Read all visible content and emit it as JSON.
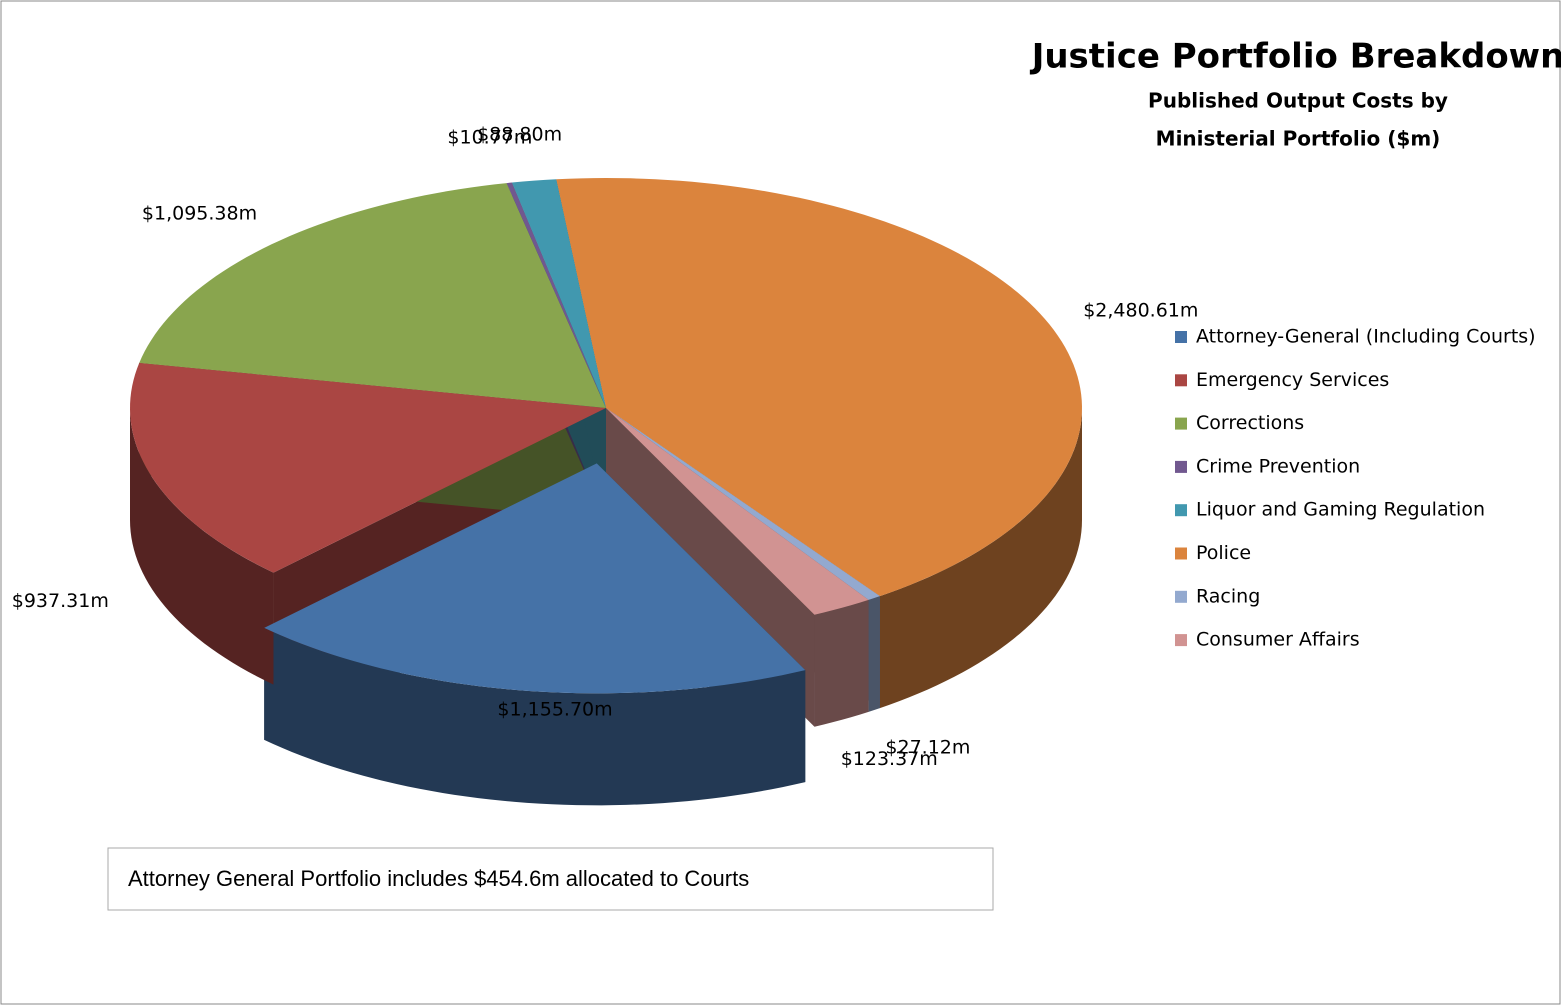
{
  "chart_data": {
    "type": "pie3d",
    "title": "Justice Portfolio Breakdown",
    "subtitle": [
      "Published Output Costs by",
      "Ministerial Portfolio ($m)"
    ],
    "categories": [
      "Attorney-General (Including Courts)",
      "Emergency Services",
      "Corrections",
      "Crime Prevention",
      "Liquor and Gaming Regulation",
      "Police",
      "Racing",
      "Consumer Affairs"
    ],
    "values": [
      1155.7,
      937.31,
      1095.38,
      10.77,
      88.8,
      2480.61,
      27.12,
      123.37
    ],
    "value_labels": [
      "$1,155.70m",
      "$937.31m",
      "$1,095.38m",
      "$10.77m",
      "$88.80m",
      "$2,480.61m",
      "$27.12m",
      "$123.37m"
    ],
    "colors": [
      "#4572a7",
      "#aa4643",
      "#89a54e",
      "#71588f",
      "#4198af",
      "#db843d",
      "#93a9cf",
      "#d19392"
    ],
    "legend": "right",
    "annotation": "Attorney General Portfolio includes $454.6m allocated to Courts"
  }
}
